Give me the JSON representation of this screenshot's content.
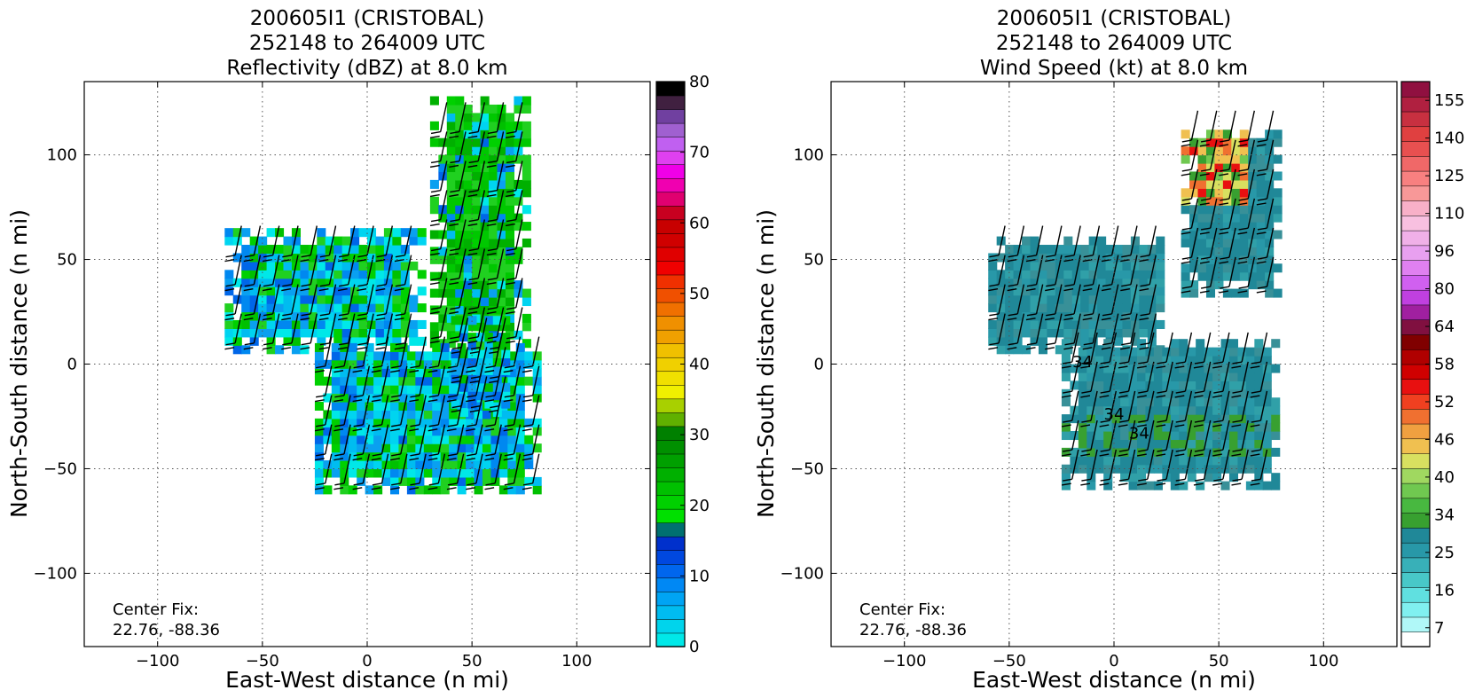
{
  "chart_data": [
    {
      "type": "heatmap",
      "title": [
        "200605I1 (CRISTOBAL)",
        "252148 to 264009 UTC",
        "Reflectivity (dBZ) at 8.0 km"
      ],
      "xlabel": "East-West distance (n mi)",
      "ylabel": "North-South distance (n mi)",
      "xlim": [
        -135,
        135
      ],
      "ylim": [
        -135,
        135
      ],
      "xticks": [
        -100,
        -50,
        0,
        50,
        100
      ],
      "yticks": [
        -100,
        -50,
        0,
        50,
        100
      ],
      "grid": true,
      "annotation": [
        "Center Fix:",
        "22.76, -88.36"
      ],
      "colorbar": {
        "min": 0,
        "max": 80,
        "tick_values": [
          0,
          10,
          20,
          30,
          40,
          50,
          60,
          70,
          80
        ],
        "tick_labels": [
          "0",
          "10",
          "20",
          "30",
          "40",
          "50",
          "60",
          "70",
          "80"
        ],
        "colors": [
          "#00e8e8",
          "#00d4ec",
          "#00bcf0",
          "#00a4f4",
          "#0088f4",
          "#0066ee",
          "#0048e0",
          "#0030cc",
          "#007070",
          "#00e000",
          "#00d000",
          "#00c000",
          "#00b000",
          "#00a000",
          "#009000",
          "#008000",
          "#60b000",
          "#a8d000",
          "#f0f000",
          "#f0e000",
          "#f0d000",
          "#f0c000",
          "#f0a000",
          "#f09000",
          "#f07000",
          "#f05000",
          "#f03000",
          "#f00000",
          "#e00000",
          "#d00000",
          "#c80000",
          "#c80020",
          "#e00070",
          "#f000b0",
          "#f000e8",
          "#e040f0",
          "#c060f0",
          "#a060d0",
          "#7040a0",
          "#402040",
          "#000000"
        ]
      },
      "data_regions": [
        {
          "x": [
            30,
            75
          ],
          "y": [
            8,
            125
          ],
          "dominant_dbz": 20
        },
        {
          "x": [
            -68,
            25
          ],
          "y": [
            5,
            62
          ],
          "dominant_dbz": 10
        },
        {
          "x": [
            -25,
            80
          ],
          "y": [
            -62,
            10
          ],
          "dominant_dbz": 15
        },
        {
          "x": [
            40,
            68
          ],
          "y": [
            -25,
            20
          ],
          "dominant_dbz": 5
        }
      ]
    },
    {
      "type": "heatmap",
      "title": [
        "200605I1 (CRISTOBAL)",
        "252148 to 264009 UTC",
        "Wind Speed (kt) at 8.0 km"
      ],
      "xlabel": "East-West distance (n mi)",
      "ylabel": "North-South distance (n mi)",
      "xlim": [
        -135,
        135
      ],
      "ylim": [
        -135,
        135
      ],
      "xticks": [
        -100,
        -50,
        0,
        50,
        100
      ],
      "yticks": [
        -100,
        -50,
        0,
        50,
        100
      ],
      "grid": true,
      "annotation": [
        "Center Fix:",
        "22.76, -88.36"
      ],
      "contour_labels": [
        {
          "text": "34",
          "x": -15,
          "y": 1
        },
        {
          "text": "34",
          "x": 0,
          "y": -24
        },
        {
          "text": "34",
          "x": 12,
          "y": -33
        }
      ],
      "colorbar": {
        "tick_values": [
          7,
          16,
          25,
          34,
          40,
          46,
          52,
          58,
          64,
          80,
          96,
          110,
          125,
          140,
          155
        ],
        "tick_labels": [
          "7",
          "16",
          "25",
          "34",
          "40",
          "46",
          "52",
          "58",
          "64",
          "80",
          "96",
          "110",
          "125",
          "140",
          "155"
        ],
        "colors": [
          "#ffffff",
          "#b0f8f8",
          "#80f0f0",
          "#60e0e0",
          "#48c8c8",
          "#38b0b8",
          "#2898a8",
          "#208898",
          "#38a030",
          "#48b840",
          "#70c850",
          "#a0d860",
          "#d8e060",
          "#f0c050",
          "#f0a040",
          "#f07030",
          "#f04020",
          "#e81010",
          "#d00000",
          "#b00000",
          "#800000",
          "#801040",
          "#a020a0",
          "#c040e0",
          "#d060f0",
          "#e080f0",
          "#e8a0f0",
          "#f0b0e8",
          "#f8c0e0",
          "#f8b0c8",
          "#f89898",
          "#f88080",
          "#f06868",
          "#e85050",
          "#e04040",
          "#c83040",
          "#b02040",
          "#901040"
        ]
      },
      "data_regions": [
        {
          "x": [
            32,
            78
          ],
          "y": [
            32,
            110
          ],
          "dominant_kt": 25,
          "peak_kt": 58
        },
        {
          "x": [
            -60,
            22
          ],
          "y": [
            5,
            60
          ],
          "dominant_kt": 25
        },
        {
          "x": [
            -25,
            78
          ],
          "y": [
            -60,
            10
          ],
          "dominant_kt": 25,
          "patches_kt": 34
        }
      ]
    }
  ]
}
